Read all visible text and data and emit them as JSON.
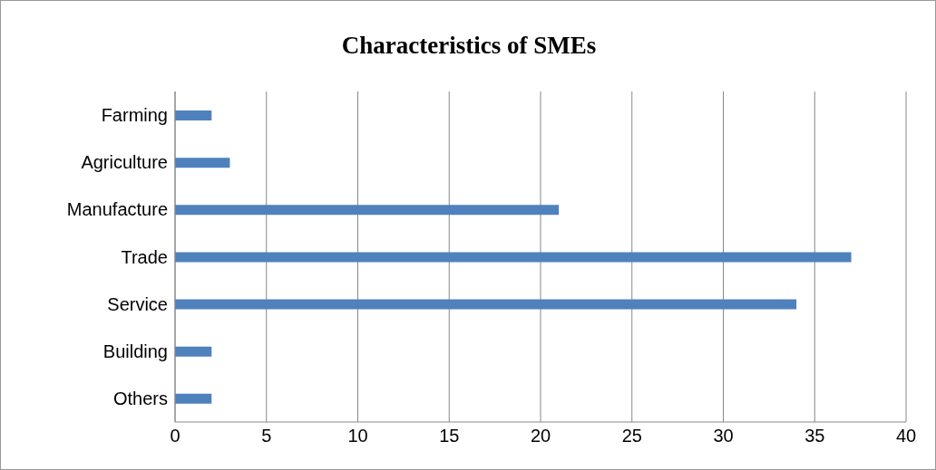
{
  "chart_data": {
    "type": "bar",
    "orientation": "horizontal",
    "title": "Characteristics of SMEs",
    "categories": [
      "Farming",
      "Agriculture",
      "Manufacture",
      "Trade",
      "Service",
      "Building",
      "Others"
    ],
    "values": [
      2,
      3,
      21,
      37,
      34,
      2,
      2
    ],
    "color": "#4f81bd",
    "xlim": [
      0,
      40
    ],
    "xticks": [
      0,
      5,
      10,
      15,
      20,
      25,
      30,
      35,
      40
    ],
    "grid": "x"
  }
}
